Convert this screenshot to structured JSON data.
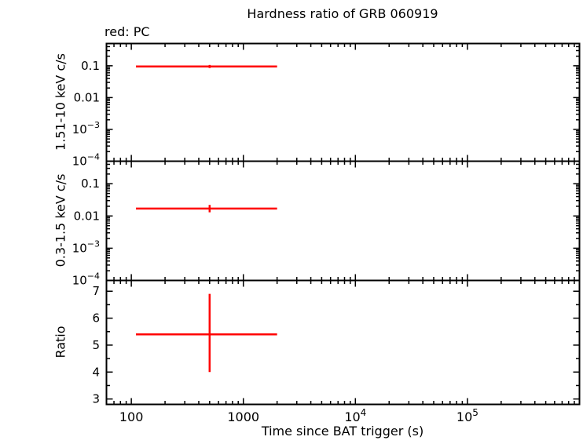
{
  "title": "Hardness ratio of GRB 060919",
  "legend_label": "red: PC",
  "xlabel": "Time since BAT trigger (s)",
  "chart_data": {
    "type": "scatter",
    "x_scale": "log",
    "xlim": [
      60,
      1000000
    ],
    "x_major_ticks": [
      100,
      1000,
      10000,
      100000
    ],
    "x_tick_labels": [
      "100",
      "1000",
      "10^4",
      "10^5"
    ],
    "point_color": "#ff0000",
    "frame_color": "#000000",
    "panels": [
      {
        "ylabel": "1.51-10 keV c/s",
        "yscale": "log",
        "ylim": [
          0.0001,
          0.5
        ],
        "yticks": [
          0.1,
          0.01,
          0.001,
          0.0001
        ],
        "ytick_labels": [
          "0.1",
          "0.01",
          "10^-3",
          "10^-4"
        ],
        "points": [
          {
            "x": 500,
            "xlo": 110,
            "xhi": 2000,
            "y": 0.095,
            "ylo": 0.085,
            "yhi": 0.106
          }
        ]
      },
      {
        "ylabel": "0.3-1.5 keV c/s",
        "yscale": "log",
        "ylim": [
          0.0001,
          0.5
        ],
        "yticks": [
          0.1,
          0.01,
          0.001,
          0.0001
        ],
        "ytick_labels": [
          "0.1",
          "0.01",
          "10^-3",
          "10^-4"
        ],
        "points": [
          {
            "x": 500,
            "xlo": 110,
            "xhi": 2000,
            "y": 0.017,
            "ylo": 0.013,
            "yhi": 0.022
          }
        ]
      },
      {
        "ylabel": "Ratio",
        "yscale": "linear",
        "ylim": [
          2.8,
          7.4
        ],
        "minor_step": 0.5,
        "yticks": [
          3,
          4,
          5,
          6,
          7
        ],
        "ytick_labels": [
          "3",
          "4",
          "5",
          "6",
          "7"
        ],
        "points": [
          {
            "x": 500,
            "xlo": 110,
            "xhi": 2000,
            "y": 5.4,
            "ylo": 4.0,
            "yhi": 6.9
          }
        ]
      }
    ]
  }
}
